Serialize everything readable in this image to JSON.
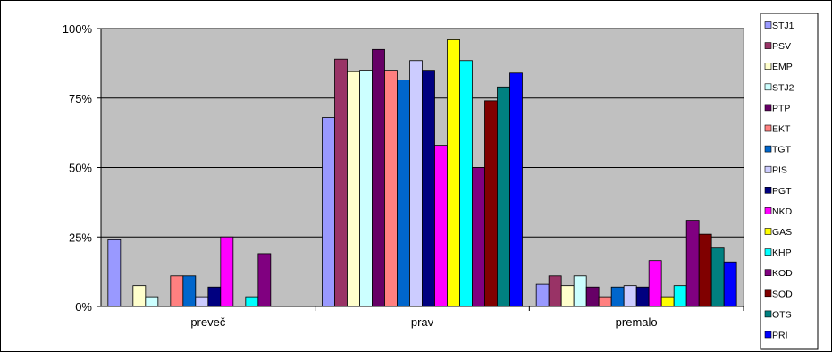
{
  "chart_data": {
    "type": "bar",
    "title": "",
    "xlabel": "",
    "ylabel": "",
    "ylim": [
      0,
      100
    ],
    "y_ticks": [
      "0%",
      "25%",
      "50%",
      "75%",
      "100%"
    ],
    "y_tick_values": [
      0,
      25,
      50,
      75,
      100
    ],
    "grid": true,
    "plot_background": "#c0c0c0",
    "legend_position": "right",
    "categories": [
      "preveč",
      "prav",
      "premalo"
    ],
    "series": [
      {
        "name": "STJ1",
        "color": "#9999ff",
        "values": [
          24,
          68,
          8
        ]
      },
      {
        "name": "PSV",
        "color": "#993366",
        "values": [
          0,
          89,
          11
        ]
      },
      {
        "name": "EMP",
        "color": "#ffffcc",
        "values": [
          7.5,
          84.5,
          7.5
        ]
      },
      {
        "name": "STJ2",
        "color": "#ccffff",
        "values": [
          3.5,
          85,
          11
        ]
      },
      {
        "name": "PTP",
        "color": "#660066",
        "values": [
          0,
          92.5,
          7
        ]
      },
      {
        "name": "EKT",
        "color": "#ff8080",
        "values": [
          11,
          85,
          3.5
        ]
      },
      {
        "name": "TGT",
        "color": "#0066cc",
        "values": [
          11,
          81.5,
          7
        ]
      },
      {
        "name": "PIS",
        "color": "#ccccff",
        "values": [
          3.5,
          88.5,
          7.5
        ]
      },
      {
        "name": "PGT",
        "color": "#000080",
        "values": [
          7,
          85,
          7
        ]
      },
      {
        "name": "NKD",
        "color": "#ff00ff",
        "values": [
          25,
          58,
          16.5
        ]
      },
      {
        "name": "GAS",
        "color": "#ffff00",
        "values": [
          0,
          96,
          3.5
        ]
      },
      {
        "name": "KHP",
        "color": "#00ffff",
        "values": [
          3.5,
          88.5,
          7.5
        ]
      },
      {
        "name": "KOD",
        "color": "#800080",
        "values": [
          19,
          50,
          31
        ]
      },
      {
        "name": "SOD",
        "color": "#800000",
        "values": [
          0,
          74,
          26
        ]
      },
      {
        "name": "OTS",
        "color": "#008080",
        "values": [
          0,
          79,
          21
        ]
      },
      {
        "name": "PRI",
        "color": "#0000ff",
        "values": [
          0,
          84,
          16
        ]
      }
    ]
  }
}
